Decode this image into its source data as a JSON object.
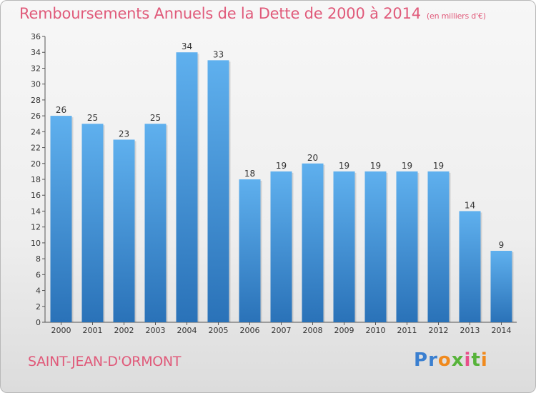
{
  "title": "Remboursements Annuels de la Dette de 2000 à 2014",
  "unit": "(en milliers d'€)",
  "town": "SAINT-JEAN-D'ORMONT",
  "logo": "Proxiti",
  "colors": {
    "accent": "#e05a7a",
    "bar_top": "#5aaceb",
    "bar_bottom": "#2a72b8"
  },
  "chart_data": {
    "type": "bar",
    "title": "Remboursements Annuels de la Dette de 2000 à 2014",
    "xlabel": "",
    "ylabel": "(en milliers d'€)",
    "categories": [
      "2000",
      "2001",
      "2002",
      "2003",
      "2004",
      "2005",
      "2006",
      "2007",
      "2008",
      "2009",
      "2010",
      "2011",
      "2012",
      "2013",
      "2014"
    ],
    "values": [
      26,
      25,
      23,
      25,
      34,
      33,
      18,
      19,
      20,
      19,
      19,
      19,
      19,
      14,
      9
    ],
    "ylim": [
      0,
      36
    ],
    "ytick_step": 2,
    "grid": false
  }
}
